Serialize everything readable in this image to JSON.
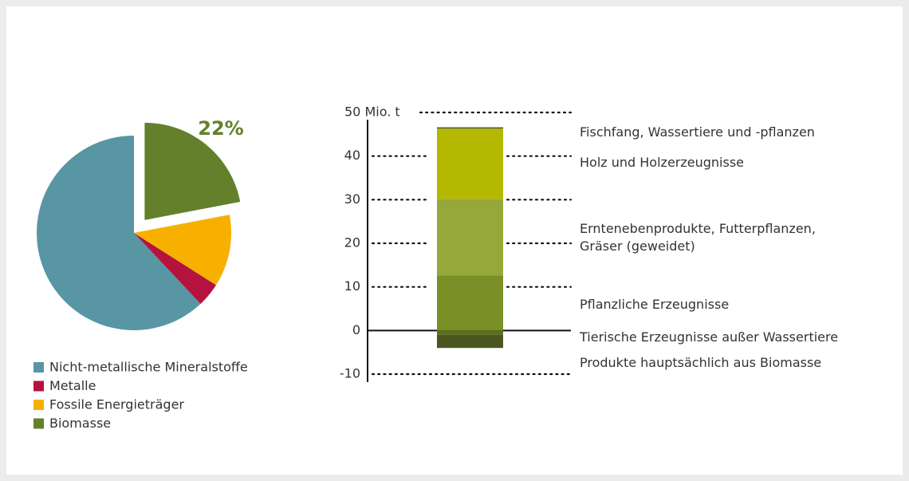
{
  "chart_data": [
    {
      "type": "pie",
      "categories": [
        "Nicht-metallische Mineralstoffe",
        "Metalle",
        "Fossile Energieträger",
        "Biomasse"
      ],
      "values": [
        62,
        4,
        12,
        22
      ],
      "value_labels": [
        null,
        null,
        null,
        "22%"
      ],
      "colors": [
        "#5896a4",
        "#b5133e",
        "#f7b000",
        "#64802b"
      ],
      "legend": "bottom-left"
    },
    {
      "type": "bar",
      "categories": [
        null
      ],
      "series": [
        {
          "name": "Pflanzliche Erzeugnisse",
          "color": "#7a8f25",
          "values": [
            12.6
          ]
        },
        {
          "name": "Erntenebenprodukte, Futterpflanzen, Gräser (geweidet)",
          "color": "#97a83a",
          "values": [
            17.6
          ]
        },
        {
          "name": "Holz und Holzerzeugnisse",
          "color": "#b5b800",
          "values": [
            16.1
          ]
        },
        {
          "name": "Fischfang, Wassertiere und -pflanzen",
          "color": "#4d5a2a",
          "values": [
            0.3
          ]
        },
        {
          "name": "Tierische Erzeugnisse außer Wassertiere",
          "color": "#5b6e22",
          "values": [
            -1
          ]
        },
        {
          "name": "Produkte hauptsächlich aus Biomasse",
          "color": "#4a5520",
          "values": [
            -3
          ]
        }
      ],
      "stacked": true,
      "ylim": [
        -10,
        50
      ],
      "yticks": [
        -10,
        0,
        10,
        20,
        30,
        40,
        {
          "value": 50,
          "label": "50 Mio. t"
        }
      ],
      "grid": true
    }
  ]
}
